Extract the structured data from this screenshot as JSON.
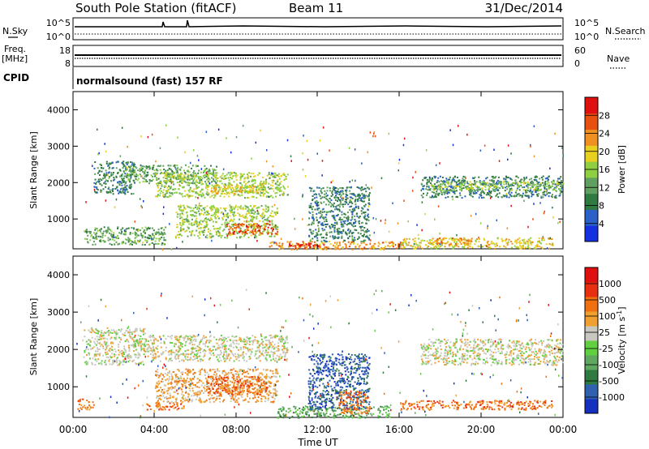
{
  "header": {
    "station": "South Pole Station (fitACF)",
    "beam": "Beam 11",
    "date": "31/Dec/2014"
  },
  "top_panels": {
    "nsky": {
      "label": "N.Sky",
      "ticks": [
        "10^5",
        "10^0"
      ]
    },
    "nsearch": {
      "label": "N.Search",
      "ticks": [
        "10^5",
        "10^0"
      ]
    },
    "freq": {
      "label_1": "Freq.",
      "label_2": "[MHz]",
      "ticks": [
        "18",
        "8"
      ]
    },
    "nave": {
      "label": "Nave",
      "ticks": [
        "60",
        "0"
      ]
    },
    "cpid": {
      "label": "CPID",
      "value": "normalsound (fast) 157 RF"
    }
  },
  "chart_data": [
    {
      "type": "heatmap",
      "name": "power",
      "ylabel": "Slant Range [km]",
      "xlabel": "Time UT",
      "xlim": [
        0,
        24
      ],
      "ylim": [
        180,
        4500
      ],
      "x_ticks": [
        "00:00",
        "04:00",
        "08:00",
        "12:00",
        "16:00",
        "20:00",
        "00:00"
      ],
      "y_ticks": [
        1000,
        2000,
        3000,
        4000
      ],
      "colorbar": {
        "label": "Power [dB]",
        "ticks": [
          "28",
          "24",
          "20",
          "16",
          "12",
          "8",
          "4"
        ],
        "colors": [
          "#1530e0",
          "#2a60c8",
          "#2f7a40",
          "#5fa060",
          "#8ed040",
          "#e8d020",
          "#f09020",
          "#e85010",
          "#e01010"
        ]
      },
      "regions": [
        {
          "x": [
            1.0,
            3.0
          ],
          "y": [
            1700,
            2600
          ],
          "level": 2
        },
        {
          "x": [
            2.5,
            7.0
          ],
          "y": [
            2000,
            2500
          ],
          "level": 3
        },
        {
          "x": [
            4.0,
            10.5
          ],
          "y": [
            1600,
            2300
          ],
          "level": 4
        },
        {
          "x": [
            6.5,
            9.5
          ],
          "y": [
            1700,
            2000
          ],
          "level": 5
        },
        {
          "x": [
            0.5,
            4.5
          ],
          "y": [
            300,
            800
          ],
          "level": 3
        },
        {
          "x": [
            5.0,
            10.0
          ],
          "y": [
            500,
            1400
          ],
          "level": 4
        },
        {
          "x": [
            7.5,
            10.0
          ],
          "y": [
            600,
            900
          ],
          "level": 7
        },
        {
          "x": [
            9.5,
            16.5
          ],
          "y": [
            180,
            400
          ],
          "level": 6
        },
        {
          "x": [
            10.5,
            12.5
          ],
          "y": [
            250,
            350
          ],
          "level": 8
        },
        {
          "x": [
            11.5,
            14.5
          ],
          "y": [
            400,
            1900
          ],
          "level": 2
        },
        {
          "x": [
            16.0,
            23.5
          ],
          "y": [
            200,
            500
          ],
          "level": 5
        },
        {
          "x": [
            17.5,
            19.5
          ],
          "y": [
            300,
            500
          ],
          "level": 6
        },
        {
          "x": [
            17.0,
            24.0
          ],
          "y": [
            1600,
            2200
          ],
          "level": 2
        },
        {
          "x": [
            17.5,
            24.0
          ],
          "y": [
            1800,
            2050
          ],
          "level": 4
        }
      ]
    },
    {
      "type": "heatmap",
      "name": "velocity",
      "ylabel": "Slant Range [km]",
      "xlabel": "Time UT",
      "xlim": [
        0,
        24
      ],
      "ylim": [
        180,
        4500
      ],
      "x_ticks": [
        "00:00",
        "04:00",
        "08:00",
        "12:00",
        "16:00",
        "20:00",
        "00:00"
      ],
      "y_ticks": [
        1000,
        2000,
        3000,
        4000
      ],
      "colorbar": {
        "label": "Velocity [m s",
        "label_exp": "-1",
        "label_end": "]",
        "ticks": [
          "1000",
          "500",
          "100",
          "25",
          "-25",
          "-100",
          "-500",
          "-1000"
        ],
        "colors": [
          "#1530c0",
          "#3060b0",
          "#2f7a40",
          "#60a860",
          "#60d040",
          "#c8c8c0",
          "#f0a030",
          "#f07010",
          "#e83010",
          "#e01010"
        ]
      },
      "regions": [
        {
          "x": [
            0.5,
            3.5
          ],
          "y": [
            1600,
            2600
          ],
          "level": 5
        },
        {
          "x": [
            3.5,
            10.5
          ],
          "y": [
            1700,
            2400
          ],
          "level": 5
        },
        {
          "x": [
            4.0,
            10.0
          ],
          "y": [
            600,
            1500
          ],
          "level": 6
        },
        {
          "x": [
            6.5,
            9.5
          ],
          "y": [
            800,
            1300
          ],
          "level": 7
        },
        {
          "x": [
            3.5,
            5.5
          ],
          "y": [
            400,
            600
          ],
          "level": 7
        },
        {
          "x": [
            0.2,
            1.0
          ],
          "y": [
            400,
            700
          ],
          "level": 7
        },
        {
          "x": [
            10.0,
            15.5
          ],
          "y": [
            180,
            500
          ],
          "level": 3
        },
        {
          "x": [
            11.5,
            14.5
          ],
          "y": [
            400,
            1900
          ],
          "level": 1
        },
        {
          "x": [
            13.0,
            14.5
          ],
          "y": [
            300,
            900
          ],
          "level": 7
        },
        {
          "x": [
            16.0,
            23.5
          ],
          "y": [
            400,
            650
          ],
          "level": 7
        },
        {
          "x": [
            17.0,
            24.0
          ],
          "y": [
            1600,
            2300
          ],
          "level": 5
        }
      ]
    }
  ]
}
